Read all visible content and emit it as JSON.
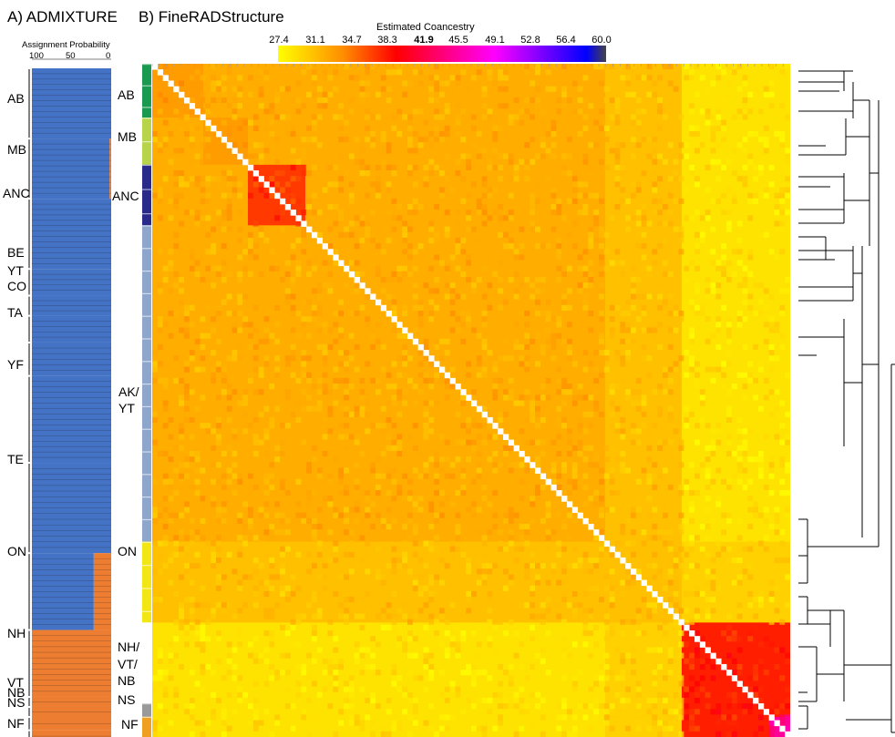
{
  "panels": {
    "a_title": "A) ADMIXTURE",
    "b_title": "B) FineRADStructure"
  },
  "admixture": {
    "axis_title": "Assignment Probability",
    "ticks": [
      "100",
      "50",
      "0"
    ],
    "labels": [
      "AB",
      "MB",
      "ANC",
      "BE",
      "YT",
      "CO",
      "TA",
      "YF",
      "TE",
      "ON",
      "NH",
      "VT",
      "NB",
      "NS",
      "NF"
    ],
    "colors": {
      "cluster1": "#4472c4",
      "cluster2": "#ed7d31"
    }
  },
  "matrix": {
    "labels": [
      "AB",
      "MB",
      "ANC",
      "AK/",
      "YT",
      "ON",
      "NH/",
      "VT/",
      "NB",
      "NS",
      "NF"
    ]
  },
  "colorbar": {
    "title": "Estimated Coancestry",
    "ticks": [
      "27.4",
      "31.1",
      "34.7",
      "38.3",
      "41.9",
      "45.5",
      "49.1",
      "52.8",
      "56.4",
      "60.0"
    ],
    "bold_tick": "41.9"
  },
  "colors": {
    "low": "#ffff00",
    "mid": "#ff8c00",
    "high": "#ff0000",
    "pink": "#ff00ff",
    "blue": "#0000ff",
    "top": "#444444",
    "group_ab": "#1a9a50",
    "group_mb": "#b8d44a",
    "group_anc": "#2a2a8a",
    "group_akyt": "#8ea6cc",
    "group_on": "#f2e614",
    "group_nh": "#ffffff",
    "group_ns": "#999999",
    "group_nf": "#f0a020"
  },
  "chart_data": {
    "type": "heatmap",
    "title": "Estimated Coancestry",
    "colorbar_ticks": [
      27.4,
      31.1,
      34.7,
      38.3,
      41.9,
      45.5,
      49.1,
      52.8,
      56.4,
      60.0
    ],
    "range": [
      27.4,
      60.0
    ],
    "populations": [
      "AB",
      "MB",
      "ANC",
      "AK/YT",
      "ON",
      "NH/VT/NB",
      "NS",
      "NF"
    ],
    "block_fractions": [
      0.08,
      0.07,
      0.09,
      0.47,
      0.12,
      0.12,
      0.02,
      0.03
    ],
    "mean_coancestry": [
      [
        33,
        32,
        32,
        32,
        31,
        29,
        29,
        29
      ],
      [
        32,
        33,
        32,
        32,
        31,
        29,
        29,
        29
      ],
      [
        32,
        32,
        37,
        32,
        31,
        29,
        29,
        29
      ],
      [
        32,
        32,
        32,
        32,
        31,
        29,
        29,
        29
      ],
      [
        31,
        31,
        31,
        31,
        31,
        30,
        30,
        30
      ],
      [
        29,
        29,
        29,
        29,
        30,
        38,
        38,
        38
      ],
      [
        29,
        29,
        29,
        29,
        30,
        38,
        38,
        38
      ],
      [
        29,
        29,
        29,
        29,
        30,
        38,
        38,
        45
      ]
    ],
    "admixture": {
      "ticks": [
        100,
        50,
        0
      ],
      "segments": [
        {
          "label": "AB",
          "fraction": 0.105,
          "p_cluster2": 0.0
        },
        {
          "label": "MB",
          "fraction": 0.09,
          "p_cluster2": 0.02
        },
        {
          "label": "ANC",
          "fraction": 0.105,
          "p_cluster2": 0.0
        },
        {
          "label": "BE",
          "fraction": 0.04,
          "p_cluster2": 0.0
        },
        {
          "label": "YT",
          "fraction": 0.03,
          "p_cluster2": 0.0
        },
        {
          "label": "CO",
          "fraction": 0.04,
          "p_cluster2": 0.0
        },
        {
          "label": "TA",
          "fraction": 0.05,
          "p_cluster2": 0.0
        },
        {
          "label": "YF",
          "fraction": 0.13,
          "p_cluster2": 0.0
        },
        {
          "label": "TE",
          "fraction": 0.135,
          "p_cluster2": 0.0
        },
        {
          "label": "ON",
          "fraction": 0.115,
          "p_cluster2": 0.22
        },
        {
          "label": "NH",
          "fraction": 0.1,
          "p_cluster2": 1.0
        },
        {
          "label": "VT",
          "fraction": 0.015,
          "p_cluster2": 1.0
        },
        {
          "label": "NB",
          "fraction": 0.015,
          "p_cluster2": 1.0
        },
        {
          "label": "NS",
          "fraction": 0.02,
          "p_cluster2": 1.0
        },
        {
          "label": "NF",
          "fraction": 0.035,
          "p_cluster2": 1.0
        }
      ]
    }
  }
}
